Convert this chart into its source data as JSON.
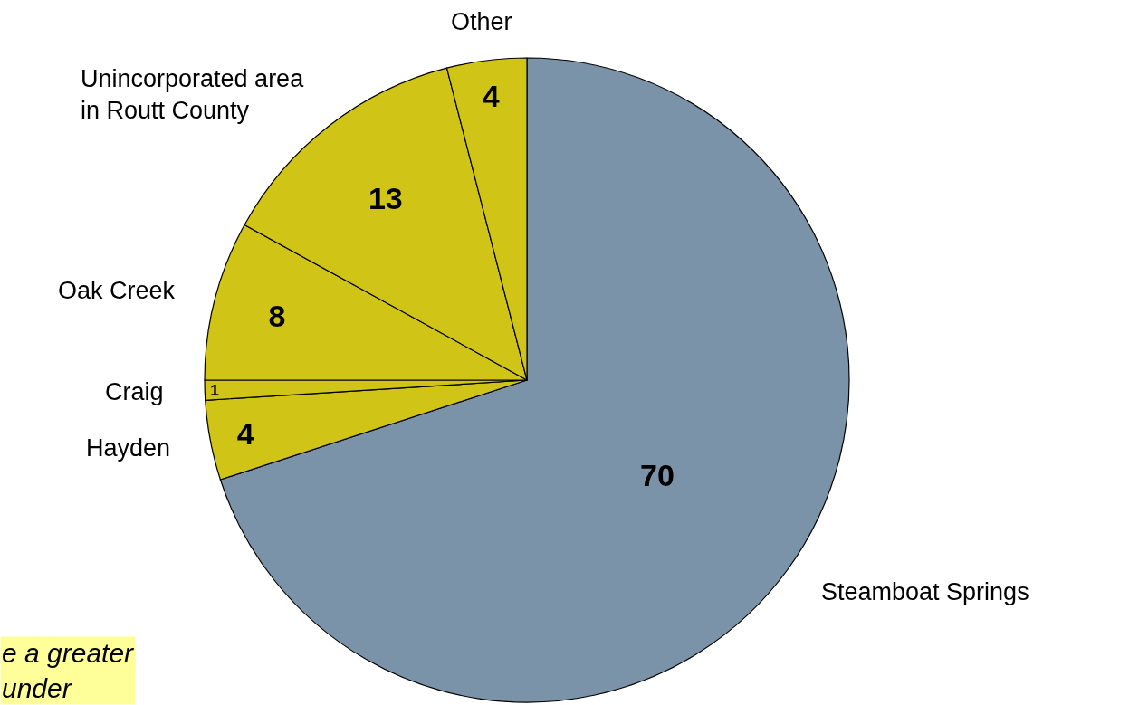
{
  "chart_data": {
    "type": "pie",
    "categories": [
      "Steamboat Springs",
      "Hayden",
      "Craig",
      "Oak Creek",
      "Unincorporated area\nin Routt County",
      "Other"
    ],
    "values": [
      70,
      4,
      1,
      8,
      13,
      4
    ],
    "colors": [
      "#7b93a8",
      "#d0c416",
      "#d0c416",
      "#d0c416",
      "#d0c416",
      "#d0c416"
    ],
    "data_labels": true,
    "legend": false,
    "annotations": [
      "e a greater\nunder"
    ]
  }
}
